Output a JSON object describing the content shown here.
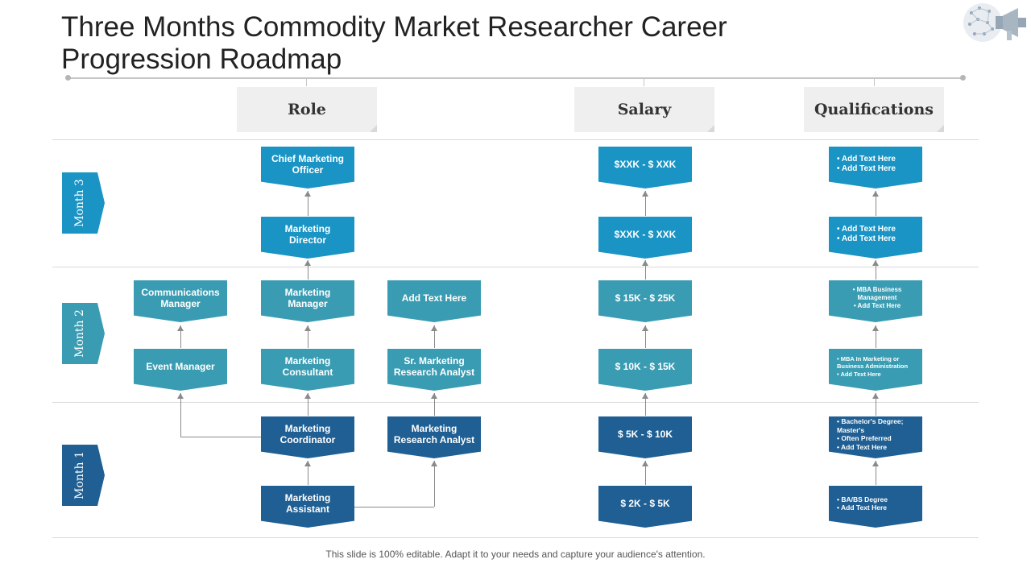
{
  "title": "Three Months Commodity Market Researcher Career Progression Roadmap",
  "columns": {
    "role": "Role",
    "salary": "Salary",
    "qualifications": "Qualifications"
  },
  "months": {
    "m3": "Month 3",
    "m2": "Month 2",
    "m1": "Month 1"
  },
  "role": {
    "chief_marketing_officer": "Chief Marketing Officer",
    "marketing_director": "Marketing Director",
    "communications_manager": "Communications Manager",
    "marketing_manager": "Marketing Manager",
    "add_text_here": "Add Text Here",
    "event_manager": "Event Manager",
    "marketing_consultant": "Marketing Consultant",
    "sr_marketing_research_analyst": "Sr. Marketing Research Analyst",
    "marketing_coordinator": "Marketing Coordinator",
    "marketing_research_analyst": "Marketing Research Analyst",
    "marketing_assistant": "Marketing Assistant"
  },
  "salary": {
    "s6": "$XXK - $ XXK",
    "s5": "$XXK - $ XXK",
    "s4": "$ 15K - $ 25K",
    "s3": "$ 10K - $ 15K",
    "s2": "$ 5K - $ 10K",
    "s1": "$ 2K - $ 5K"
  },
  "qualifications": {
    "q6": [
      "Add Text Here",
      "Add Text Here"
    ],
    "q5": [
      "Add Text Here",
      "Add Text Here"
    ],
    "q4": [
      "MBA Business Management",
      "Add Text Here"
    ],
    "q3": [
      "MBA In Marketing or Business Administration",
      "Add Text Here"
    ],
    "q2": [
      "Bachelor's Degree; Master's",
      "Often Preferred",
      "Add Text Here"
    ],
    "q1": [
      "BA/BS Degree",
      "Add Text Here"
    ]
  },
  "footer": "This slide is 100% editable. Adapt it to your needs and capture your audience's attention.",
  "colors": {
    "month3": "#1a94c4",
    "month2": "#3a9cb2",
    "month1": "#1f5f93"
  },
  "icons": {
    "logo": "megaphone-network-icon"
  }
}
